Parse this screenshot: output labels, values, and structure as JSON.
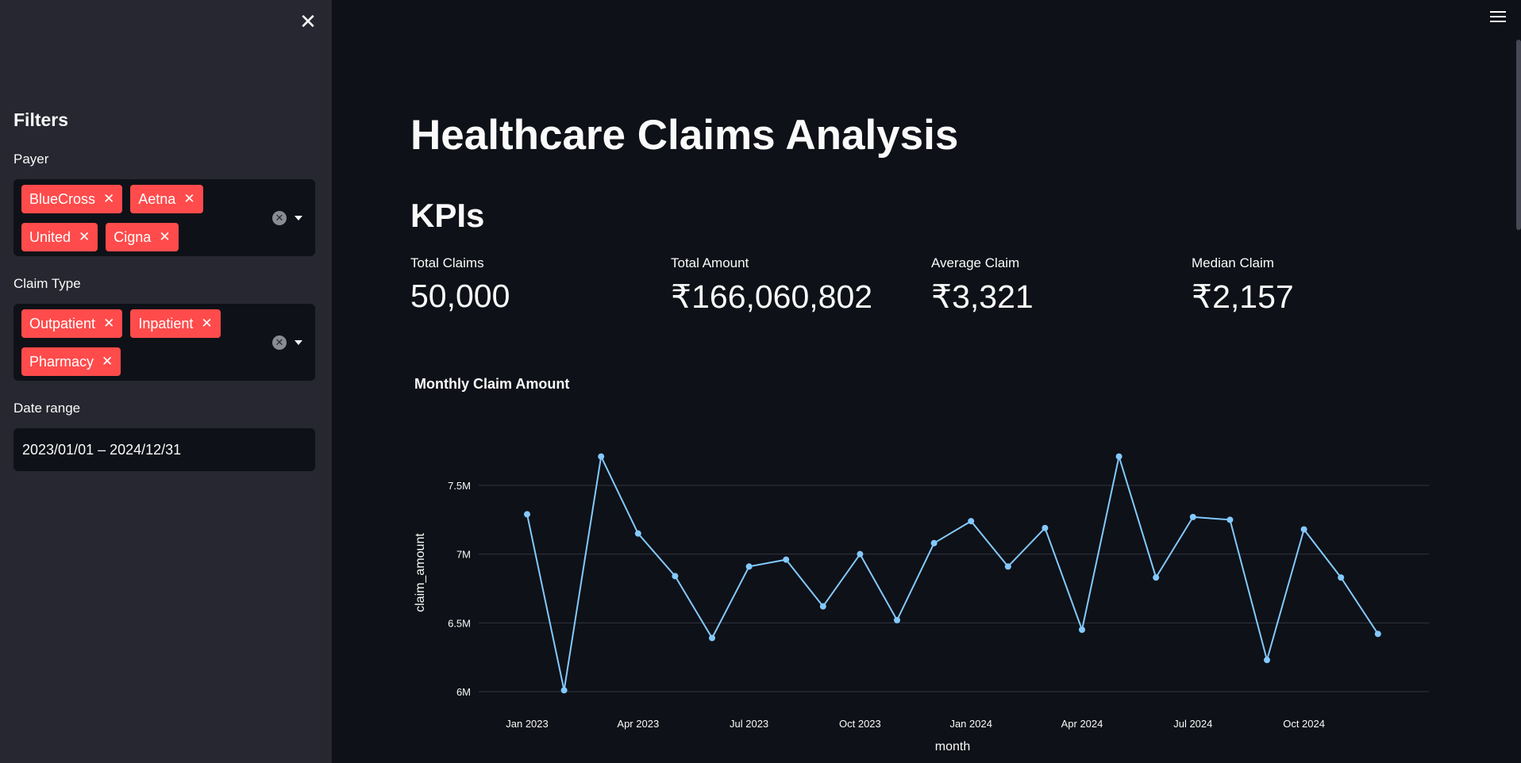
{
  "sidebar": {
    "close_icon": "close-icon",
    "header": "Filters",
    "payer": {
      "label": "Payer",
      "chips": [
        "BlueCross",
        "Aetna",
        "United",
        "Cigna"
      ]
    },
    "claim_type": {
      "label": "Claim Type",
      "chips": [
        "Outpatient",
        "Inpatient",
        "Pharmacy"
      ]
    },
    "date_range": {
      "label": "Date range",
      "value": "2023/01/01 – 2024/12/31"
    }
  },
  "main": {
    "menu_icon": "hamburger-menu-icon",
    "title": "Healthcare Claims Analysis",
    "kpi_header": "KPIs",
    "metrics": [
      {
        "label": "Total Claims",
        "value": "50,000"
      },
      {
        "label": "Total Amount",
        "value": "₹166,060,802"
      },
      {
        "label": "Average Claim",
        "value": "₹3,321"
      },
      {
        "label": "Median Claim",
        "value": "₹2,157"
      }
    ],
    "chart_title": "Monthly Claim Amount"
  },
  "colors": {
    "background": "#0e1117",
    "sidebar": "#262730",
    "chip": "#ff4b4b",
    "line": "#83c9ff",
    "grid": "#31333f"
  },
  "chart_data": {
    "type": "line",
    "title": "Monthly Claim Amount",
    "xlabel": "month",
    "ylabel": "claim_amount",
    "x": [
      "2023-01",
      "2023-02",
      "2023-03",
      "2023-04",
      "2023-05",
      "2023-06",
      "2023-07",
      "2023-08",
      "2023-09",
      "2023-10",
      "2023-11",
      "2023-12",
      "2024-01",
      "2024-02",
      "2024-03",
      "2024-04",
      "2024-05",
      "2024-06",
      "2024-07",
      "2024-08",
      "2024-09",
      "2024-10",
      "2024-11",
      "2024-12"
    ],
    "series": [
      {
        "values": [
          7290000,
          6010000,
          7710000,
          7150000,
          6840000,
          6390000,
          6910000,
          6960000,
          6620000,
          7000000,
          6520000,
          7080000,
          7240000,
          6910000,
          7190000,
          6450000,
          7710000,
          6830000,
          7270000,
          7250000,
          6230000,
          7180000,
          6830000,
          6420000
        ]
      }
    ],
    "x_tick_labels": [
      "Jan 2023",
      "Apr 2023",
      "Jul 2023",
      "Oct 2023",
      "Jan 2024",
      "Apr 2024",
      "Jul 2024",
      "Oct 2024"
    ],
    "y_ticks": [
      6000000,
      6500000,
      7000000,
      7500000
    ],
    "y_tick_labels": [
      "6M",
      "6.5M",
      "7M",
      "7.5M"
    ],
    "ylim": [
      6000000,
      7800000
    ],
    "grid": true
  }
}
